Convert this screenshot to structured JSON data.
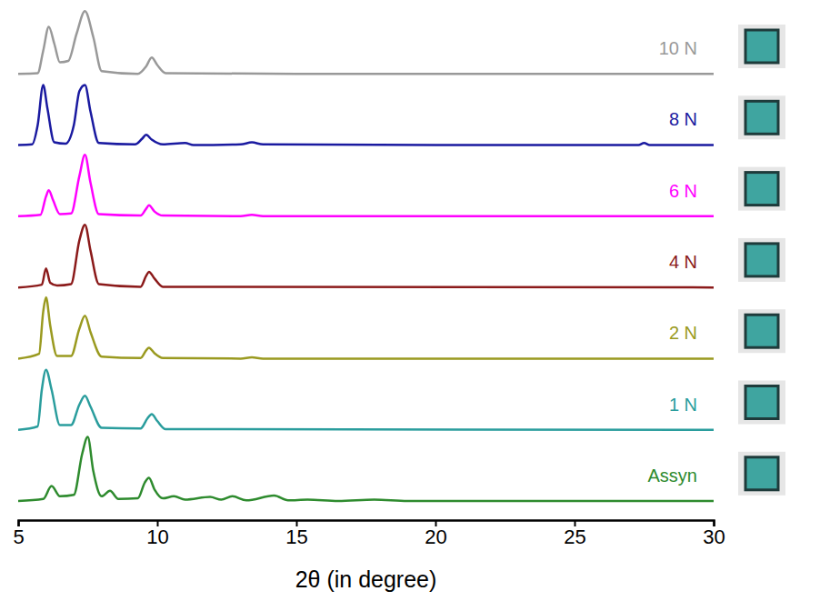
{
  "chart_data": {
    "type": "line",
    "x_label": "2θ (in degree)",
    "xlim": [
      5,
      30
    ],
    "xticks": [
      5,
      10,
      15,
      20,
      25,
      30
    ],
    "ylim": [
      0,
      100
    ],
    "tick_labels": "x",
    "grid": false,
    "series": [
      {
        "name": "10 N",
        "color": "#999999",
        "x": [
          5,
          5.7,
          5.9,
          6.1,
          6.3,
          6.5,
          6.8,
          7.1,
          7.4,
          7.7,
          8.0,
          9.3,
          9.6,
          9.8,
          10.0,
          10.3,
          15,
          20,
          25,
          30
        ],
        "values": [
          1,
          2,
          35,
          70,
          45,
          18,
          20,
          60,
          93,
          55,
          5,
          1,
          12,
          25,
          14,
          2,
          1,
          1,
          1,
          1
        ]
      },
      {
        "name": "8 N",
        "color": "#1a1aa0",
        "x": [
          5,
          5.5,
          5.7,
          5.9,
          6.05,
          6.3,
          6.7,
          7.0,
          7.2,
          7.4,
          7.6,
          7.9,
          9.2,
          9.45,
          9.6,
          9.8,
          10.2,
          11.0,
          11.3,
          13.0,
          13.4,
          13.8,
          20,
          27.3,
          27.5,
          27.7,
          30
        ],
        "values": [
          1,
          2,
          30,
          89,
          55,
          5,
          3,
          30,
          80,
          89,
          50,
          4,
          2,
          10,
          16,
          9,
          2,
          4,
          1,
          2,
          5,
          2,
          1,
          1,
          4,
          1,
          1
        ]
      },
      {
        "name": "6 N",
        "color": "#ff00ff",
        "x": [
          5,
          5.8,
          6.0,
          6.1,
          6.25,
          6.5,
          6.9,
          7.2,
          7.4,
          7.6,
          7.9,
          9.4,
          9.6,
          9.7,
          9.9,
          10.2,
          13.0,
          13.4,
          13.8,
          30
        ],
        "values": [
          1,
          3,
          30,
          39,
          25,
          4,
          5,
          60,
          91,
          50,
          4,
          2,
          12,
          17,
          8,
          2,
          1,
          3,
          1,
          1
        ]
      },
      {
        "name": "4 N",
        "color": "#8b1a1a",
        "x": [
          5,
          5.85,
          6.0,
          6.15,
          6.4,
          6.9,
          7.2,
          7.4,
          7.6,
          7.9,
          9.4,
          9.6,
          9.7,
          9.9,
          10.2,
          30
        ],
        "values": [
          1,
          5,
          29,
          8,
          4,
          6,
          70,
          93,
          55,
          6,
          2,
          18,
          24,
          14,
          2,
          1
        ]
      },
      {
        "name": "2 N",
        "color": "#9a9a20",
        "x": [
          5,
          5.75,
          5.9,
          6.0,
          6.15,
          6.4,
          6.9,
          7.2,
          7.4,
          7.6,
          8.0,
          9.4,
          9.6,
          9.7,
          9.9,
          10.2,
          13.0,
          13.4,
          13.8,
          30
        ],
        "values": [
          1,
          8,
          70,
          91,
          50,
          5,
          5,
          45,
          64,
          40,
          4,
          2,
          13,
          17,
          9,
          2,
          1,
          3,
          1,
          1
        ]
      },
      {
        "name": "1 N",
        "color": "#2a9d9d",
        "x": [
          5,
          5.7,
          5.85,
          6.0,
          6.2,
          6.5,
          6.9,
          7.2,
          7.4,
          7.6,
          8.0,
          9.4,
          9.65,
          9.8,
          10.0,
          10.3,
          30
        ],
        "values": [
          1,
          6,
          60,
          89,
          60,
          8,
          8,
          38,
          51,
          35,
          4,
          3,
          18,
          24,
          14,
          2,
          1
        ]
      },
      {
        "name": "Assyn",
        "color": "#2e8b2e",
        "x": [
          5,
          5.9,
          6.2,
          6.5,
          7.0,
          7.3,
          7.5,
          7.7,
          8.0,
          8.3,
          8.6,
          9.3,
          9.55,
          9.7,
          9.9,
          10.2,
          10.6,
          11.0,
          11.9,
          12.3,
          12.7,
          13.2,
          14.2,
          14.7,
          15.4,
          16.5,
          17.8,
          19,
          30
        ],
        "values": [
          1,
          4,
          23,
          8,
          10,
          70,
          95,
          45,
          8,
          16,
          4,
          5,
          28,
          35,
          18,
          5,
          8,
          3,
          7,
          3,
          8,
          2,
          9,
          2,
          3,
          1,
          3,
          1,
          1
        ]
      }
    ]
  }
}
